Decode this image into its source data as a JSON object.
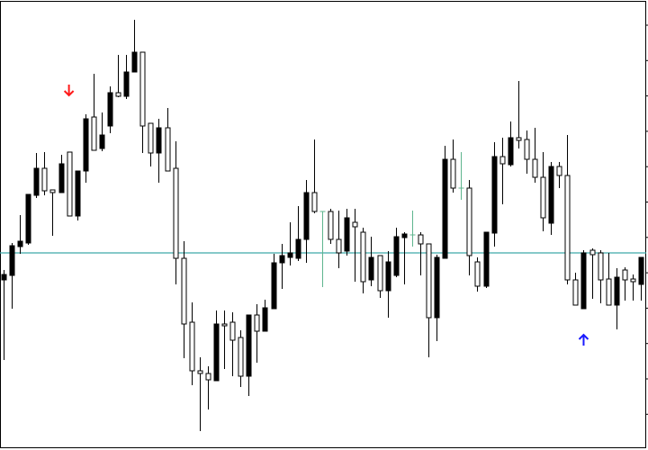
{
  "chart_data": {
    "type": "candlestick",
    "title": "",
    "xlabel": "",
    "ylabel": "",
    "grid": false,
    "ylim": [
      0,
      500
    ],
    "colors": {
      "bull_body": "#ffffff",
      "bear_body": "#000000",
      "candle_outline": "#000000",
      "doji": "#5fb58e",
      "horizontal_line": "#3fa9a9",
      "sell_arrow": "#ff1a1a",
      "buy_arrow": "#1a1aff",
      "frame": "#000000"
    },
    "horizontal_line_price": 219,
    "signals": [
      {
        "type": "sell",
        "icon": "arrow-down-icon",
        "candle_index": 8,
        "price": 400
      },
      {
        "type": "buy",
        "icon": "arrow-up-icon",
        "candle_index": 71,
        "price": 122
      }
    ],
    "ohlc": [
      [
        195,
        200,
        100,
        189
      ],
      [
        227,
        230,
        157,
        194
      ],
      [
        232,
        261,
        218,
        226
      ],
      [
        284,
        284,
        228,
        230
      ],
      [
        313,
        330,
        280,
        283
      ],
      [
        288,
        331,
        283,
        313
      ],
      [
        286,
        289,
        238,
        289
      ],
      [
        318,
        328,
        286,
        286
      ],
      [
        260,
        331,
        260,
        331
      ],
      [
        310,
        310,
        255,
        260
      ],
      [
        368,
        373,
        297,
        310
      ],
      [
        333,
        418,
        333,
        370
      ],
      [
        350,
        375,
        332,
        335
      ],
      [
        397,
        404,
        352,
        360
      ],
      [
        393,
        439,
        392,
        397
      ],
      [
        420,
        439,
        390,
        393
      ],
      [
        442,
        478,
        420,
        420
      ],
      [
        360,
        442,
        330,
        442
      ],
      [
        330,
        363,
        315,
        363
      ],
      [
        358,
        368,
        297,
        330
      ],
      [
        310,
        380,
        310,
        358
      ],
      [
        213,
        343,
        184,
        313
      ],
      [
        140,
        232,
        102,
        213
      ],
      [
        88,
        164,
        72,
        142
      ],
      [
        85,
        103,
        21,
        88
      ],
      [
        78,
        93,
        45,
        85
      ],
      [
        140,
        155,
        77,
        77
      ],
      [
        138,
        155,
        90,
        140
      ],
      [
        122,
        153,
        82,
        142
      ],
      [
        82,
        133,
        70,
        125
      ],
      [
        150,
        150,
        60,
        82
      ],
      [
        132,
        162,
        97,
        150
      ],
      [
        158,
        167,
        132,
        132
      ],
      [
        208,
        218,
        157,
        157
      ],
      [
        216,
        229,
        179,
        208
      ],
      [
        219,
        253,
        205,
        214
      ],
      [
        234,
        271,
        210,
        213
      ],
      [
        286,
        300,
        208,
        234
      ],
      [
        265,
        345,
        263,
        286
      ],
      [
        265,
        265,
        181,
        265
      ],
      [
        234,
        268,
        229,
        265
      ],
      [
        219,
        266,
        202,
        234
      ],
      [
        258,
        268,
        216,
        221
      ],
      [
        248,
        268,
        187,
        253
      ],
      [
        187,
        247,
        174,
        242
      ],
      [
        214,
        237,
        182,
        189
      ],
      [
        177,
        216,
        169,
        216
      ],
      [
        209,
        221,
        147,
        177
      ],
      [
        237,
        247,
        192,
        194
      ],
      [
        240,
        242,
        184,
        236
      ],
      [
        239,
        266,
        226,
        239
      ],
      [
        229,
        242,
        194,
        239
      ],
      [
        147,
        229,
        103,
        229
      ],
      [
        214,
        217,
        121,
        147
      ],
      [
        323,
        338,
        213,
        213
      ],
      [
        291,
        345,
        286,
        323
      ],
      [
        291,
        331,
        278,
        291
      ],
      [
        216,
        300,
        194,
        291
      ],
      [
        182,
        214,
        176,
        209
      ],
      [
        242,
        242,
        180,
        182
      ],
      [
        326,
        342,
        226,
        241
      ],
      [
        318,
        347,
        273,
        326
      ],
      [
        347,
        365,
        315,
        317
      ],
      [
        344,
        410,
        335,
        347
      ],
      [
        323,
        355,
        307,
        345
      ],
      [
        303,
        358,
        297,
        323
      ],
      [
        258,
        331,
        243,
        303
      ],
      [
        315,
        320,
        239,
        252
      ],
      [
        305,
        320,
        291,
        315
      ],
      [
        189,
        350,
        184,
        305
      ],
      [
        161,
        197,
        161,
        189
      ],
      [
        219,
        222,
        157,
        157
      ],
      [
        217,
        224,
        168,
        222
      ],
      [
        189,
        222,
        163,
        219
      ],
      [
        161,
        219,
        161,
        190
      ],
      [
        192,
        202,
        134,
        161
      ],
      [
        189,
        203,
        166,
        200
      ],
      [
        187,
        195,
        166,
        190
      ],
      [
        214,
        214,
        166,
        184
      ]
    ]
  }
}
